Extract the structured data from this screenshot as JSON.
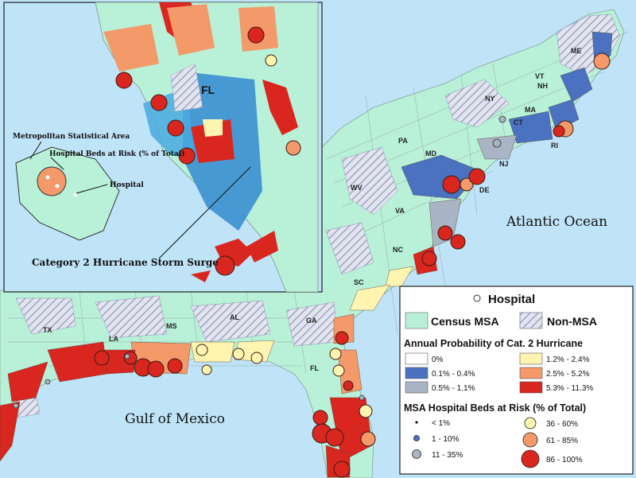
{
  "map": {
    "ocean_labels": {
      "atlantic": "Atlantic Ocean",
      "gulf": "Gulf of Mexico"
    },
    "state_labels": [
      "ME",
      "VT",
      "NH",
      "NY",
      "MA",
      "CT",
      "RI",
      "PA",
      "MD",
      "NJ",
      "DE",
      "WV",
      "VA",
      "NC",
      "SC",
      "GA",
      "AL",
      "MS",
      "LA",
      "TX",
      "FL"
    ],
    "colors": {
      "water": "#bfe3f7",
      "land_msa": "#b8f0d8",
      "non_msa_hatch": "#b9bdd6",
      "cat_0": "#ffffff",
      "cat_0.1-0.4": "#4a72c0",
      "cat_0.5-1.1": "#a9b4c4",
      "cat_1.2-2.4": "#fff4b0",
      "cat_2.5-5.2": "#f3996a",
      "cat_5.3-11.3": "#d9261f",
      "storm_surge": "#3b8fd0"
    }
  },
  "inset": {
    "state_label": "FL",
    "callouts": {
      "msa": "Metropolitan Statistical Area",
      "beds": "Hospital Beds at Risk (% of Total)",
      "hospital": "Hospital",
      "surge": "Category 2 Hurricane Storm Surge"
    }
  },
  "legend": {
    "hospital": "Hospital",
    "census_msa": "Census MSA",
    "non_msa": "Non-MSA",
    "probability_title": "Annual Probability of Cat. 2 Hurricane",
    "probability_classes": [
      "0%",
      "0.1% - 0.4%",
      "0.5% - 1.1%",
      "1.2% - 2.4%",
      "2.5% - 5.2%",
      "5.3% - 11.3%"
    ],
    "beds_title": "MSA Hospital Beds at Risk (% of Total)",
    "beds_classes": [
      "< 1%",
      "1 - 10%",
      "11 - 35%",
      "36 - 60%",
      "61 - 85%",
      "86 - 100%"
    ]
  }
}
